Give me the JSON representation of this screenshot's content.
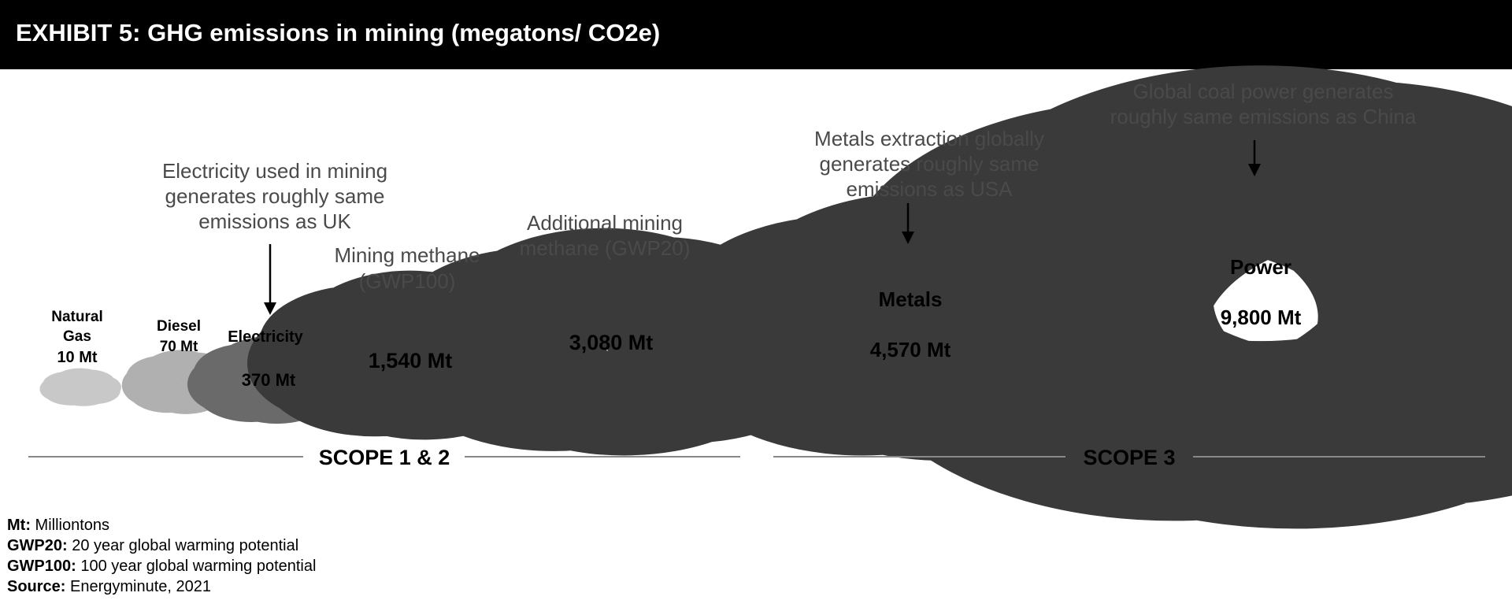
{
  "title": "EXHIBIT 5: GHG emissions in mining (megatons/ CO2e)",
  "clouds": [
    {
      "id": "natural-gas",
      "label_lines": [
        "Natural",
        "Gas",
        "10 Mt"
      ],
      "value_mt": 10
    },
    {
      "id": "diesel",
      "label_lines": [
        "Diesel",
        "70 Mt"
      ],
      "value_mt": 70
    },
    {
      "id": "electricity",
      "label": "Electricity",
      "value_label": "370 Mt",
      "value_mt": 370
    },
    {
      "id": "mining-methane",
      "caption_lines": [
        "Mining methane",
        "(GWP100)"
      ],
      "value_label": "1,540 Mt",
      "value_mt": 1540
    },
    {
      "id": "additional-methane",
      "caption_lines": [
        "Additional mining",
        "methane (GWP20)"
      ],
      "value_label": "3,080 Mt",
      "value_mt": 3080
    },
    {
      "id": "metals",
      "label": "Metals",
      "value_label": "4,570 Mt",
      "value_mt": 4570
    },
    {
      "id": "power",
      "label": "Power",
      "value_label": "9,800 Mt",
      "value_mt": 9800
    }
  ],
  "annotations": {
    "electricity": [
      "Electricity used in mining",
      "generates roughly same",
      "emissions as UK"
    ],
    "metals": [
      "Metals extraction globally",
      "generates roughly same",
      "emissions as USA"
    ],
    "power": [
      "Global coal power generates",
      "roughly same emissions as China"
    ]
  },
  "scopes": [
    "SCOPE 1 & 2",
    "SCOPE 3"
  ],
  "footnotes": [
    {
      "term": "Mt:",
      "text": " Milliontons"
    },
    {
      "term": "GWP20:",
      "text": " 20 year global warming potential"
    },
    {
      "term": "GWP100:",
      "text": " 100 year global warming potential"
    },
    {
      "term": "Source:",
      "text": " Energyminute, 2021"
    }
  ],
  "colors": {
    "header_bg": "#000000",
    "cloud_stroke": "#3a3a3a",
    "faint_cloud_stroke": "#c8c8c8",
    "annotation_text": "#4a4a4a"
  }
}
